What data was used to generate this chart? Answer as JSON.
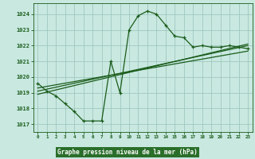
{
  "title": "Graphe pression niveau de la mer (hPa)",
  "bg_color": "#c8e8e0",
  "plot_bg_color": "#c8e8e0",
  "grid_color": "#a0c8c0",
  "line_color": "#1a5c1a",
  "label_bg": "#2a6e2a",
  "label_fg": "#ffffff",
  "xlim": [
    -0.5,
    23.5
  ],
  "ylim": [
    1016.5,
    1024.7
  ],
  "yticks": [
    1017,
    1018,
    1019,
    1020,
    1021,
    1022,
    1023,
    1024
  ],
  "xticks": [
    0,
    1,
    2,
    3,
    4,
    5,
    6,
    7,
    8,
    9,
    10,
    11,
    12,
    13,
    14,
    15,
    16,
    17,
    18,
    19,
    20,
    21,
    22,
    23
  ],
  "main_x": [
    0,
    1,
    2,
    3,
    4,
    5,
    6,
    7,
    8,
    9,
    10,
    11,
    12,
    13,
    14,
    15,
    16,
    17,
    18,
    19,
    20,
    21,
    22,
    23
  ],
  "main_y": [
    1019.6,
    1019.1,
    1018.8,
    1018.3,
    1017.8,
    1017.2,
    1017.2,
    1017.2,
    1021.0,
    1019.0,
    1023.0,
    1023.9,
    1024.2,
    1024.0,
    1023.3,
    1022.6,
    1022.5,
    1021.9,
    1022.0,
    1021.9,
    1021.9,
    1022.0,
    1021.9,
    1021.8
  ],
  "line2_x": [
    0,
    23
  ],
  "line2_y": [
    1019.1,
    1022.0
  ],
  "line3_x": [
    0,
    23
  ],
  "line3_y": [
    1019.3,
    1021.65
  ],
  "line4_x": [
    0,
    23
  ],
  "line4_y": [
    1018.9,
    1022.1
  ]
}
